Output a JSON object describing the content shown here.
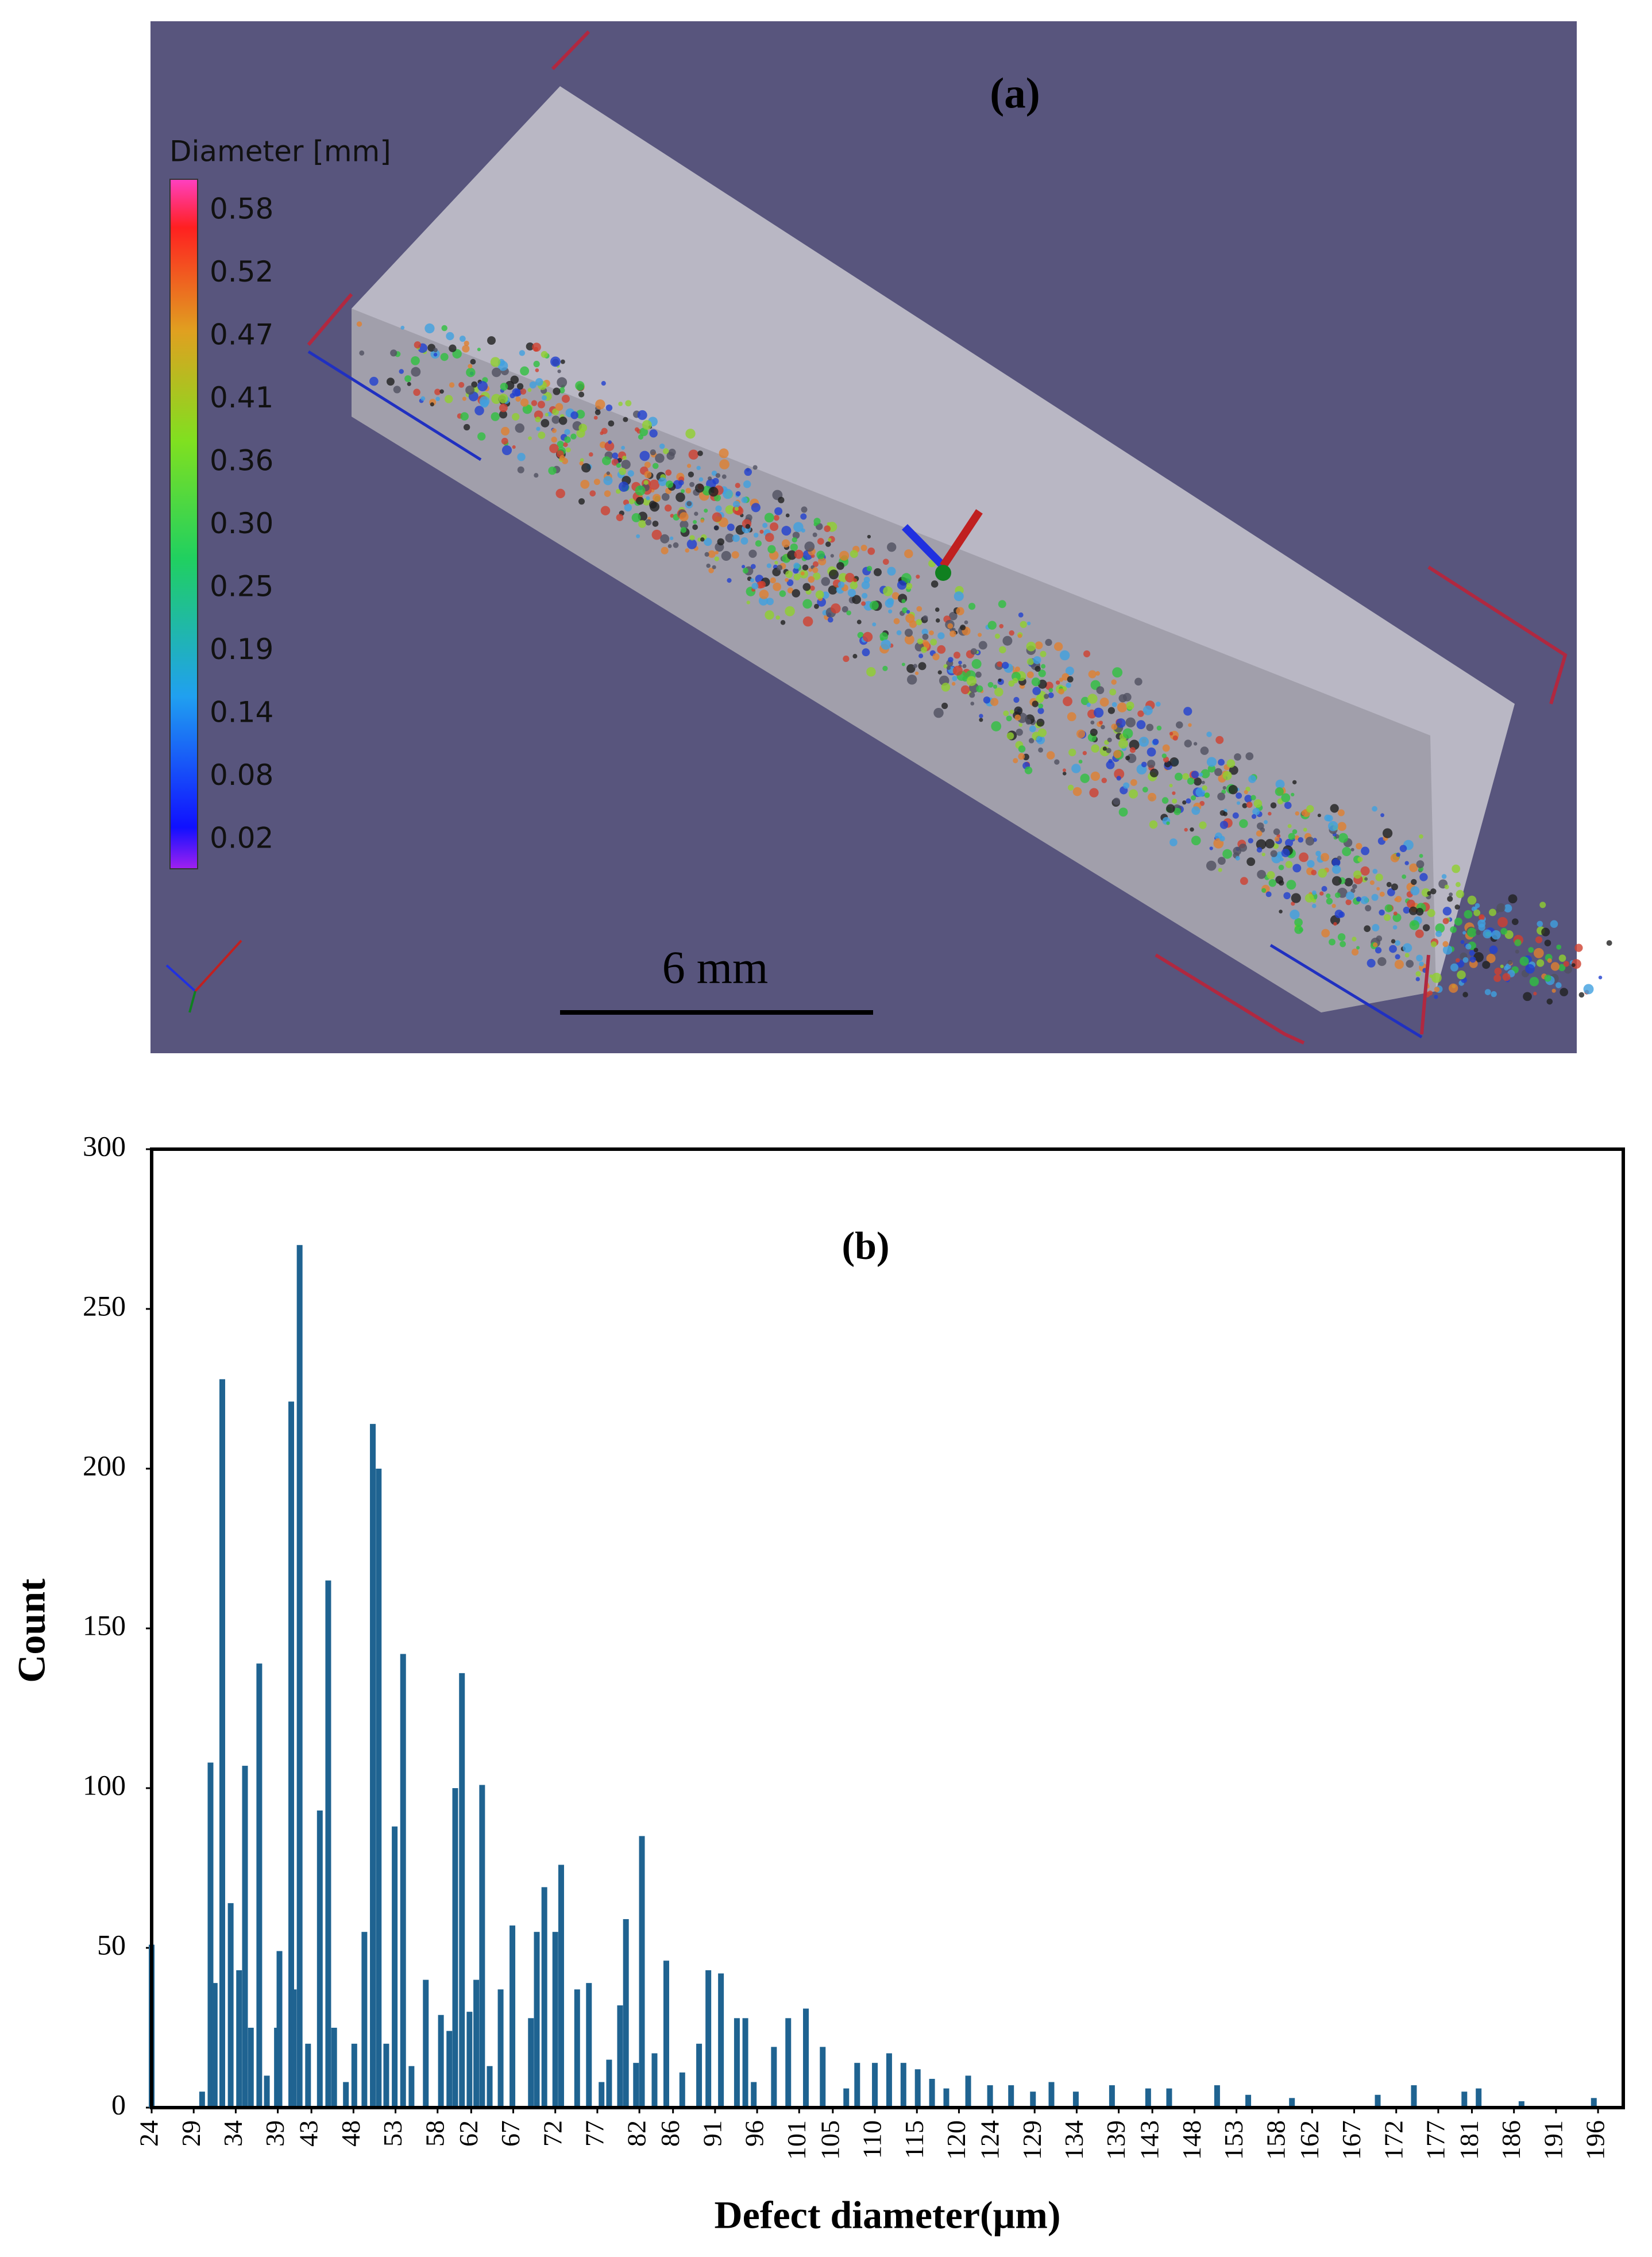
{
  "panel_a": {
    "label": "(a)",
    "colorbar_title": "Diameter [mm]",
    "colorbar_ticks": [
      "0.58",
      "0.52",
      "0.47",
      "0.41",
      "0.36",
      "0.30",
      "0.25",
      "0.19",
      "0.14",
      "0.08",
      "0.02"
    ],
    "scale_bar": "6 mm"
  },
  "chart_data": {
    "type": "bar",
    "annotation": "(b)",
    "xlabel": "Defect diameter(μm)",
    "ylabel": "Count",
    "color": "#1f6391",
    "x": [
      24.0,
      30.0,
      31.0,
      31.5,
      32.4,
      33.4,
      34.4,
      35.1,
      35.8,
      36.8,
      37.7,
      38.9,
      39.2,
      40.6,
      40.9,
      41.6,
      42.6,
      44.0,
      45.0,
      45.7,
      47.1,
      48.1,
      49.3,
      50.3,
      51.0,
      51.9,
      52.9,
      53.9,
      54.9,
      56.6,
      58.4,
      59.4,
      60.1,
      60.9,
      61.8,
      62.6,
      63.3,
      64.2,
      65.5,
      66.9,
      69.1,
      69.8,
      70.7,
      72.0,
      72.7,
      74.6,
      76.0,
      77.5,
      78.4,
      79.7,
      80.4,
      81.6,
      82.3,
      83.8,
      85.2,
      87.1,
      89.1,
      90.2,
      91.7,
      93.6,
      94.6,
      95.6,
      98.0,
      99.7,
      101.8,
      103.8,
      106.6,
      107.9,
      110.0,
      111.7,
      113.4,
      115.1,
      116.8,
      118.5,
      121.1,
      123.7,
      126.2,
      128.8,
      131.0,
      133.9,
      138.2,
      142.5,
      145.0,
      150.7,
      154.4,
      159.6,
      169.8,
      174.1,
      180.1,
      181.8,
      186.9,
      195.5
    ],
    "values": [
      51,
      5,
      108,
      39,
      228,
      64,
      43,
      107,
      25,
      139,
      10,
      25,
      49,
      221,
      37,
      270,
      20,
      93,
      165,
      25,
      8,
      20,
      55,
      214,
      200,
      20,
      88,
      142,
      13,
      40,
      29,
      24,
      100,
      136,
      30,
      40,
      101,
      13,
      37,
      57,
      28,
      55,
      69,
      55,
      76,
      37,
      39,
      8,
      15,
      32,
      59,
      14,
      85,
      17,
      46,
      11,
      20,
      43,
      42,
      28,
      28,
      8,
      19,
      28,
      31,
      19,
      6,
      14,
      14,
      17,
      14,
      12,
      9,
      6,
      10,
      7,
      7,
      5,
      8,
      5,
      7,
      6,
      6,
      7,
      4,
      3,
      4,
      7,
      5,
      6,
      2,
      3
    ],
    "xlim": [
      24,
      199
    ],
    "xticks": [
      24,
      29,
      34,
      39,
      43,
      48,
      53,
      58,
      62,
      67,
      72,
      77,
      82,
      86,
      91,
      96,
      101,
      105,
      110,
      115,
      120,
      124,
      129,
      134,
      139,
      143,
      148,
      153,
      158,
      162,
      167,
      172,
      177,
      181,
      186,
      191,
      196
    ],
    "ylim": [
      0,
      300
    ],
    "yticks": [
      0,
      50,
      100,
      150,
      200,
      250,
      300
    ]
  }
}
